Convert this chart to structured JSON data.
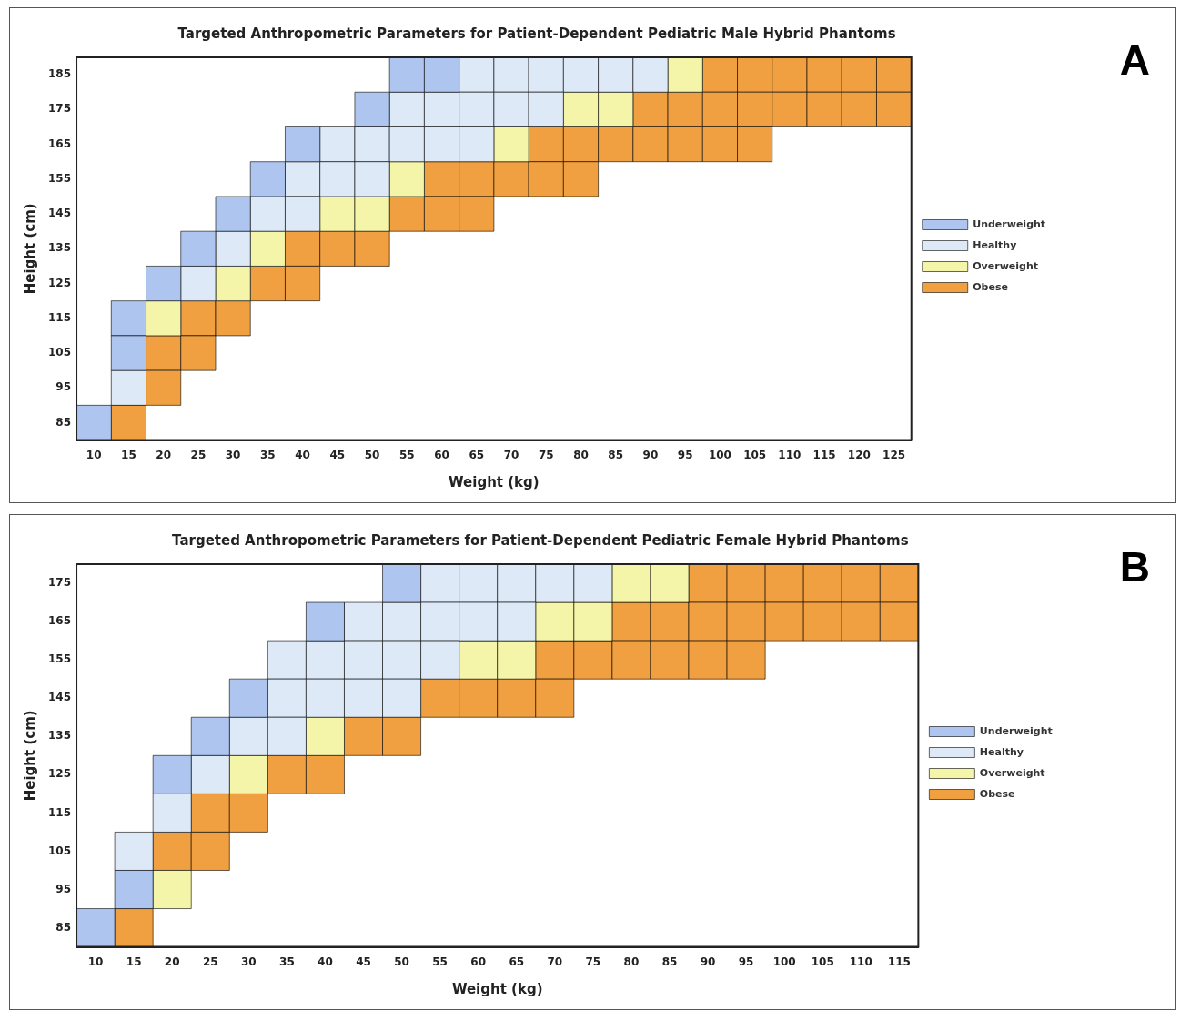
{
  "chart_data": [
    {
      "type": "scatter",
      "title": "Targeted Anthropometric Parameters for Patient-Dependent Pediatric Male Hybrid Phantoms",
      "xlabel": "Weight (kg)",
      "ylabel": "Height (cm)",
      "annotations": [
        "A"
      ],
      "legend": "right",
      "marker": "square",
      "grid": false,
      "xlim": [
        7.5,
        127.5
      ],
      "xticks": [
        10,
        15,
        20,
        25,
        30,
        35,
        40,
        45,
        50,
        55,
        60,
        65,
        70,
        75,
        80,
        85,
        90,
        95,
        100,
        105,
        110,
        115,
        120,
        125
      ],
      "ylim": [
        80,
        190
      ],
      "yticks": [
        85,
        95,
        105,
        115,
        125,
        135,
        145,
        155,
        165,
        175,
        185
      ],
      "series": [
        {
          "name": "Underweight",
          "color": "#aec6ef",
          "x": [
            55,
            60,
            50,
            40,
            35,
            30,
            25,
            20,
            15,
            15,
            10
          ],
          "values": [
            185,
            185,
            175,
            165,
            155,
            145,
            135,
            125,
            115,
            105,
            85
          ]
        },
        {
          "name": "Healthy",
          "color": "#dde9f6",
          "x": [
            65,
            70,
            75,
            80,
            85,
            90,
            55,
            60,
            65,
            70,
            75,
            45,
            50,
            55,
            60,
            65,
            40,
            45,
            50,
            35,
            40,
            30,
            25,
            15
          ],
          "values": [
            185,
            185,
            185,
            185,
            185,
            185,
            175,
            175,
            175,
            175,
            175,
            165,
            165,
            165,
            165,
            165,
            155,
            155,
            155,
            145,
            145,
            135,
            125,
            95
          ]
        },
        {
          "name": "Overweight",
          "color": "#f5f5a9",
          "x": [
            95,
            80,
            85,
            70,
            55,
            45,
            50,
            35,
            30,
            20
          ],
          "values": [
            185,
            175,
            175,
            165,
            155,
            145,
            145,
            135,
            125,
            115
          ]
        },
        {
          "name": "Obese",
          "color": "#f0a040",
          "x": [
            100,
            105,
            110,
            115,
            120,
            125,
            90,
            95,
            100,
            105,
            110,
            115,
            120,
            125,
            75,
            80,
            85,
            90,
            95,
            100,
            105,
            60,
            65,
            70,
            75,
            80,
            55,
            60,
            65,
            40,
            45,
            50,
            35,
            40,
            25,
            30,
            20,
            25,
            20,
            15
          ],
          "values": [
            185,
            185,
            185,
            185,
            185,
            185,
            175,
            175,
            175,
            175,
            175,
            175,
            175,
            175,
            165,
            165,
            165,
            165,
            165,
            165,
            165,
            155,
            155,
            155,
            155,
            155,
            145,
            145,
            145,
            135,
            135,
            135,
            125,
            125,
            115,
            115,
            105,
            105,
            95,
            85
          ]
        }
      ]
    },
    {
      "type": "scatter",
      "title": "Targeted Anthropometric Parameters for Patient-Dependent Pediatric Female Hybrid Phantoms",
      "xlabel": "Weight (kg)",
      "ylabel": "Height (cm)",
      "annotations": [
        "B"
      ],
      "legend": "right",
      "marker": "square",
      "grid": false,
      "xlim": [
        7.5,
        117.5
      ],
      "xticks": [
        10,
        15,
        20,
        25,
        30,
        35,
        40,
        45,
        50,
        55,
        60,
        65,
        70,
        75,
        80,
        85,
        90,
        95,
        100,
        105,
        110,
        115
      ],
      "ylim": [
        80,
        180
      ],
      "yticks": [
        85,
        95,
        105,
        115,
        125,
        135,
        145,
        155,
        165,
        175
      ],
      "series": [
        {
          "name": "Underweight",
          "color": "#aec6ef",
          "x": [
            50,
            40,
            30,
            25,
            20,
            15,
            10
          ],
          "values": [
            175,
            165,
            145,
            135,
            125,
            95,
            85
          ]
        },
        {
          "name": "Healthy",
          "color": "#dde9f6",
          "x": [
            55,
            60,
            65,
            70,
            75,
            45,
            50,
            55,
            60,
            65,
            35,
            40,
            45,
            50,
            55,
            35,
            40,
            45,
            50,
            30,
            35,
            25,
            20,
            15
          ],
          "values": [
            175,
            175,
            175,
            175,
            175,
            165,
            165,
            165,
            165,
            165,
            155,
            155,
            155,
            155,
            155,
            145,
            145,
            145,
            145,
            135,
            135,
            125,
            115,
            105
          ]
        },
        {
          "name": "Overweight",
          "color": "#f5f5a9",
          "x": [
            80,
            85,
            70,
            75,
            60,
            65,
            40,
            30,
            20
          ],
          "values": [
            175,
            175,
            165,
            165,
            155,
            155,
            135,
            125,
            95
          ]
        },
        {
          "name": "Obese",
          "color": "#f0a040",
          "x": [
            90,
            95,
            100,
            105,
            110,
            115,
            80,
            85,
            90,
            95,
            100,
            105,
            110,
            115,
            70,
            75,
            80,
            85,
            90,
            95,
            55,
            60,
            65,
            70,
            45,
            50,
            35,
            40,
            25,
            30,
            20,
            25,
            15
          ],
          "values": [
            175,
            175,
            175,
            175,
            175,
            175,
            165,
            165,
            165,
            165,
            165,
            165,
            165,
            165,
            155,
            155,
            155,
            155,
            155,
            155,
            145,
            145,
            145,
            145,
            135,
            135,
            125,
            125,
            115,
            115,
            105,
            105,
            85
          ]
        }
      ]
    }
  ]
}
